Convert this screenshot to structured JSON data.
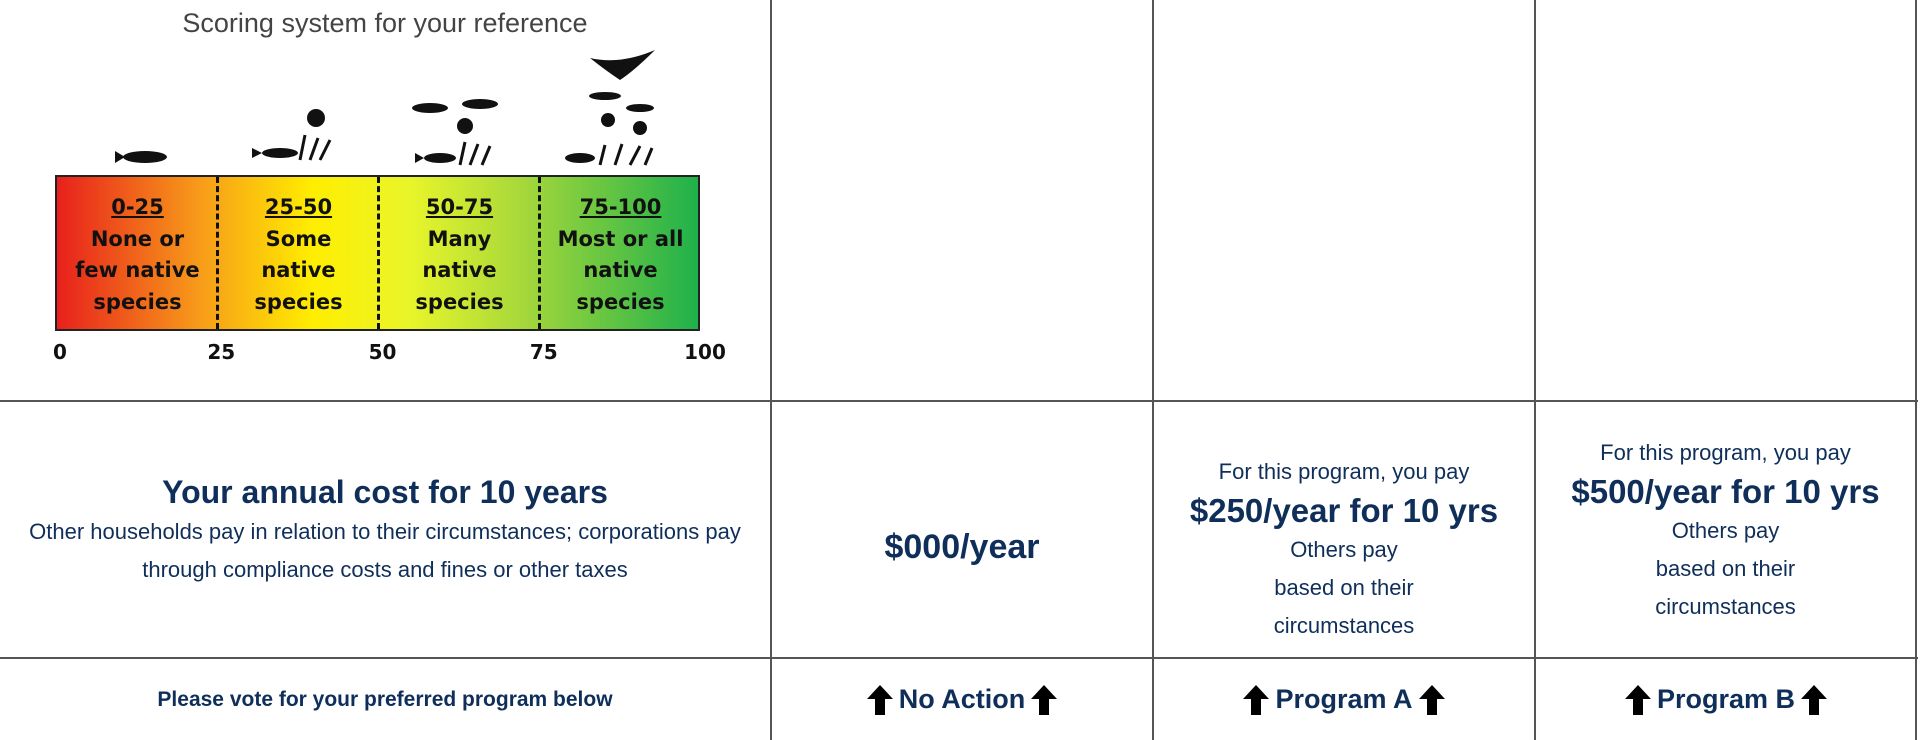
{
  "scoring": {
    "title": "Scoring system for your reference",
    "segments": [
      {
        "range": "0-25",
        "lines": [
          "None or",
          "few native",
          "species"
        ]
      },
      {
        "range": "25-50",
        "lines": [
          "Some",
          "native",
          "species"
        ]
      },
      {
        "range": "50-75",
        "lines": [
          "Many",
          "native",
          "species"
        ]
      },
      {
        "range": "75-100",
        "lines": [
          "Most or all",
          "native",
          "species"
        ]
      }
    ],
    "axis_labels": [
      "0",
      "25",
      "50",
      "75",
      "100"
    ]
  },
  "cost_row": {
    "heading": "Your annual cost for 10 years",
    "description": "Other households pay in relation to their circumstances; corporations pay through compliance costs and fines or other taxes",
    "no_action": "$000/year",
    "program_a": {
      "intro": "For this program, you pay",
      "amount": "$250/year for 10 yrs",
      "note_lines": [
        "Others pay",
        "based on their",
        "circumstances"
      ]
    },
    "program_b": {
      "intro": "For this program, you pay",
      "amount": "$500/year for 10 yrs",
      "note_lines": [
        "Others pay",
        "based on their",
        "circumstances"
      ]
    }
  },
  "vote_row": {
    "prompt": "Please vote for your preferred program below",
    "options": [
      "No Action",
      "Program A",
      "Program B"
    ]
  }
}
